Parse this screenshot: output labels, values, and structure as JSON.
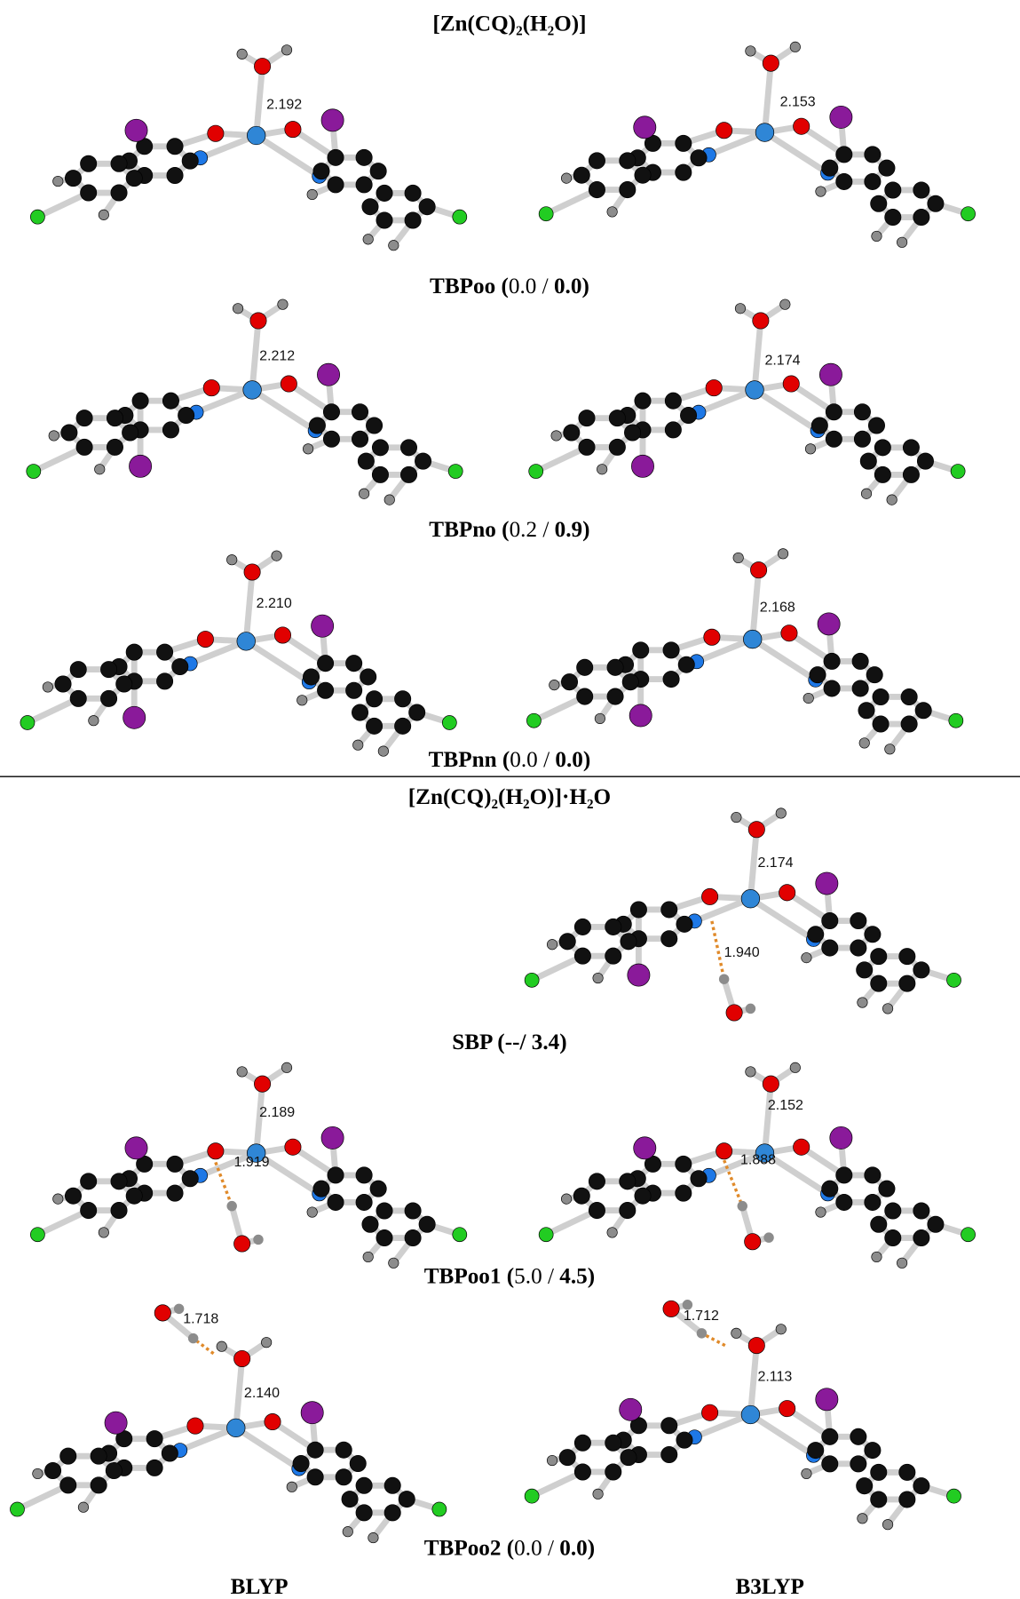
{
  "header": {
    "title": "[Zn(CQ)₂(H₂O)]"
  },
  "rows": [
    {
      "label": [
        {
          "text": "TBPoo (",
          "bold": true
        },
        {
          "text": "0.0 / ",
          "bold": false
        },
        {
          "text": "0.0)",
          "bold": true
        }
      ],
      "distances": [
        "2.192",
        "2.153"
      ]
    },
    {
      "label": [
        {
          "text": "TBPno (",
          "bold": true
        },
        {
          "text": "0.2 / ",
          "bold": false
        },
        {
          "text": "0.9)",
          "bold": true
        }
      ],
      "distances": [
        "2.212",
        "2.174"
      ]
    },
    {
      "label": [
        {
          "text": "TBPnn (",
          "bold": true
        },
        {
          "text": "0.0 / ",
          "bold": false
        },
        {
          "text": "0.0)",
          "bold": true
        }
      ],
      "distances": [
        "2.210",
        "2.168"
      ]
    },
    {
      "label": [
        {
          "text": "SBP (--/ 3.4)",
          "bold": true
        }
      ],
      "distances": [
        "2.174",
        "1.940"
      ]
    },
    {
      "label": [
        {
          "text": "TBPoo1 (",
          "bold": true
        },
        {
          "text": "5.0 / ",
          "bold": false
        },
        {
          "text": "4.5)",
          "bold": true
        }
      ],
      "distances": [
        "2.189",
        "1.919",
        "2.152",
        "1.888"
      ]
    },
    {
      "label": [
        {
          "text": "TBPoo2 (",
          "bold": true
        },
        {
          "text": "0.0 / ",
          "bold": false
        },
        {
          "text": "0.0)",
          "bold": true
        }
      ],
      "distances": [
        "1.718",
        "2.140",
        "1.712",
        "2.113"
      ]
    }
  ],
  "section2": {
    "title": "[Zn(CQ)₂(H₂O)]·H₂O"
  },
  "methods": [
    "BLYP",
    "B3LYP"
  ]
}
